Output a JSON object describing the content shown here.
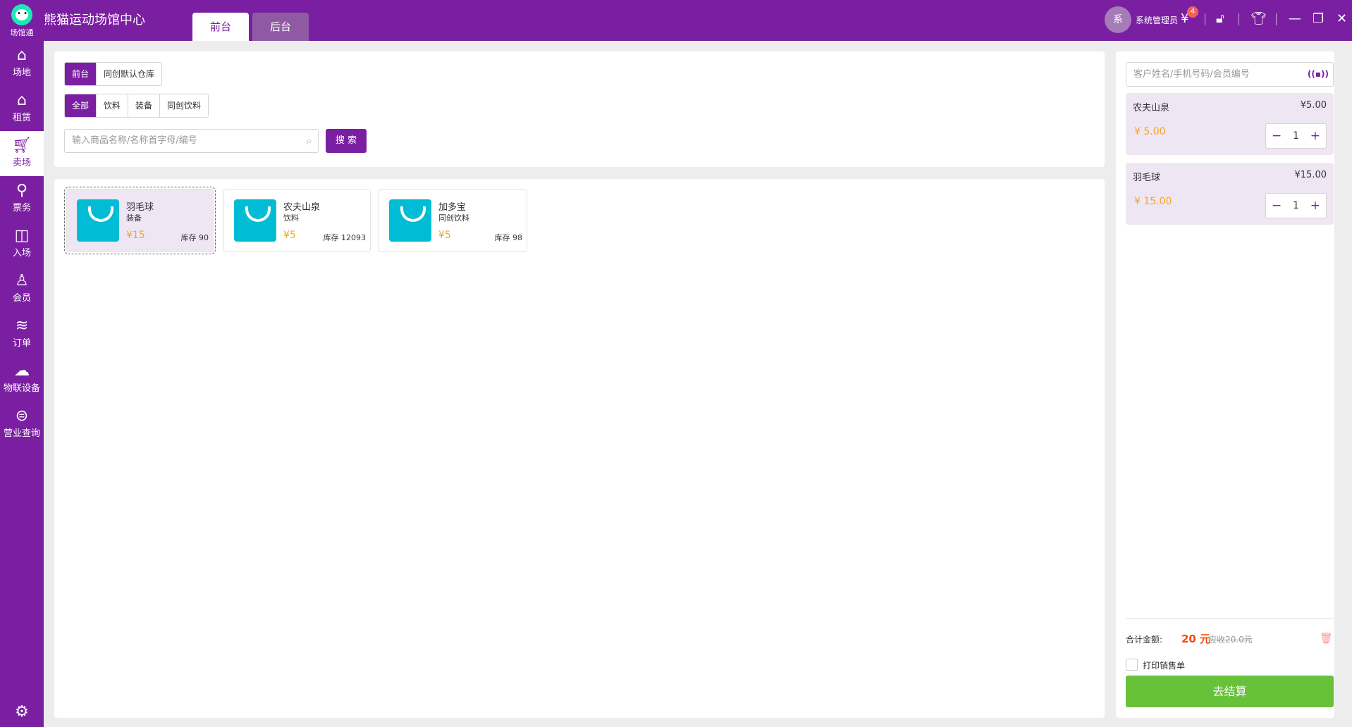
{
  "app": {
    "logo_label": "场馆通",
    "title": "熊猫运动场馆中心",
    "tabs": [
      {
        "label": "前台",
        "active": true
      },
      {
        "label": "后台",
        "active": false
      }
    ]
  },
  "user": {
    "avatar": "系",
    "name": "系统管理员",
    "notification_count": "4"
  },
  "sidebar": {
    "items": [
      {
        "label": "场地",
        "icon": "home-icon"
      },
      {
        "label": "租赁",
        "icon": "rental-icon"
      },
      {
        "label": "卖场",
        "icon": "cart-icon",
        "active": true
      },
      {
        "label": "票务",
        "icon": "ticket-icon"
      },
      {
        "label": "入场",
        "icon": "gate-icon"
      },
      {
        "label": "会员",
        "icon": "member-icon"
      },
      {
        "label": "订单",
        "icon": "layers-icon"
      },
      {
        "label": "物联设备",
        "icon": "iot-icon"
      },
      {
        "label": "营业查询",
        "icon": "revenue-search-icon"
      }
    ]
  },
  "filters": {
    "warehouses": [
      {
        "label": "前台",
        "active": true
      },
      {
        "label": "同创默认仓库"
      }
    ],
    "categories": [
      {
        "label": "全部",
        "active": true
      },
      {
        "label": "饮料"
      },
      {
        "label": "装备"
      },
      {
        "label": "同创饮料"
      }
    ],
    "search_placeholder": "输入商品名称/名称首字母/编号",
    "search_button": "搜 索"
  },
  "products": [
    {
      "name": "羽毛球",
      "category": "装备",
      "price": "¥15",
      "stock": "库存 90",
      "selected": true
    },
    {
      "name": "农夫山泉",
      "category": "饮料",
      "price": "¥5",
      "stock": "库存 12093"
    },
    {
      "name": "加多宝",
      "category": "同创饮料",
      "price": "¥5",
      "stock": "库存 98"
    }
  ],
  "cart": {
    "customer_placeholder": "客户姓名/手机号码/会员编号",
    "nfc_label": "((▪))",
    "items": [
      {
        "name": "农夫山泉",
        "unit_price": "¥5.00",
        "total": "¥ 5.00",
        "qty": "1"
      },
      {
        "name": "羽毛球",
        "unit_price": "¥15.00",
        "total": "¥ 15.00",
        "qty": "1"
      }
    ],
    "total_label": "合计金额:",
    "total_value": "20 元",
    "total_original": "应收20.0元",
    "print_label": "打印销售单",
    "checkout_label": "去结算"
  },
  "colors": {
    "brand": "#7b1fa2",
    "price": "#f5a623",
    "total": "#ff4400",
    "checkout": "#67c23a",
    "product_icon": "#00bcd4"
  }
}
